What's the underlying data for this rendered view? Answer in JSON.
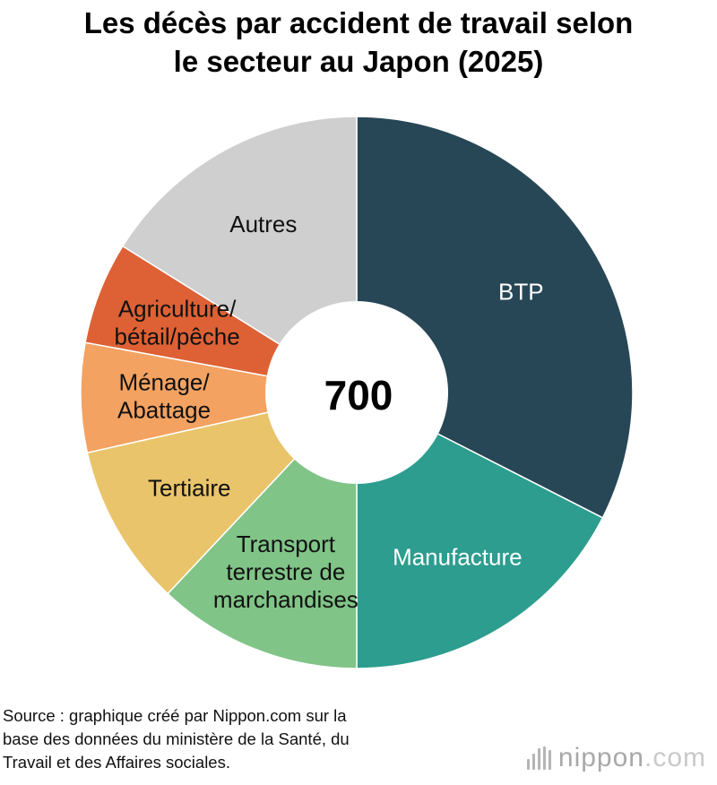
{
  "chart_data": {
    "type": "pie",
    "title_lines": [
      "Les décès par accident de travail selon",
      "le secteur au Japon (2025)"
    ],
    "center_label": "700",
    "slices": [
      {
        "label_lines": [
          "BTP"
        ],
        "value": 32.5,
        "color": "#274756",
        "label_color": "#ffffff"
      },
      {
        "label_lines": [
          "Manufacture"
        ],
        "value": 17.5,
        "color": "#2c9d8f",
        "label_color": "#ffffff"
      },
      {
        "label_lines": [
          "Transport",
          "terrestre de",
          "marchandises"
        ],
        "value": 12.0,
        "color": "#80c487",
        "label_color": "#111111"
      },
      {
        "label_lines": [
          "Tertiaire"
        ],
        "value": 9.5,
        "color": "#e9c46a",
        "label_color": "#111111"
      },
      {
        "label_lines": [
          "Ménage/",
          "Abattage"
        ],
        "value": 6.4,
        "color": "#f3a261",
        "label_color": "#111111"
      },
      {
        "label_lines": [
          "Agriculture/",
          "bétail/pêche"
        ],
        "value": 6.0,
        "color": "#dd6135",
        "label_color": "#111111"
      },
      {
        "label_lines": [
          "Autres"
        ],
        "value": 16.1,
        "color": "#cfcfcf",
        "label_color": "#111111"
      }
    ]
  },
  "source_lines": [
    "Source : graphique créé par Nippon.com sur la",
    "base des données du ministère de la Santé, du",
    "Travail et des Affaires sociales."
  ],
  "brand": {
    "part1": "nippon",
    "part2": ".com"
  }
}
